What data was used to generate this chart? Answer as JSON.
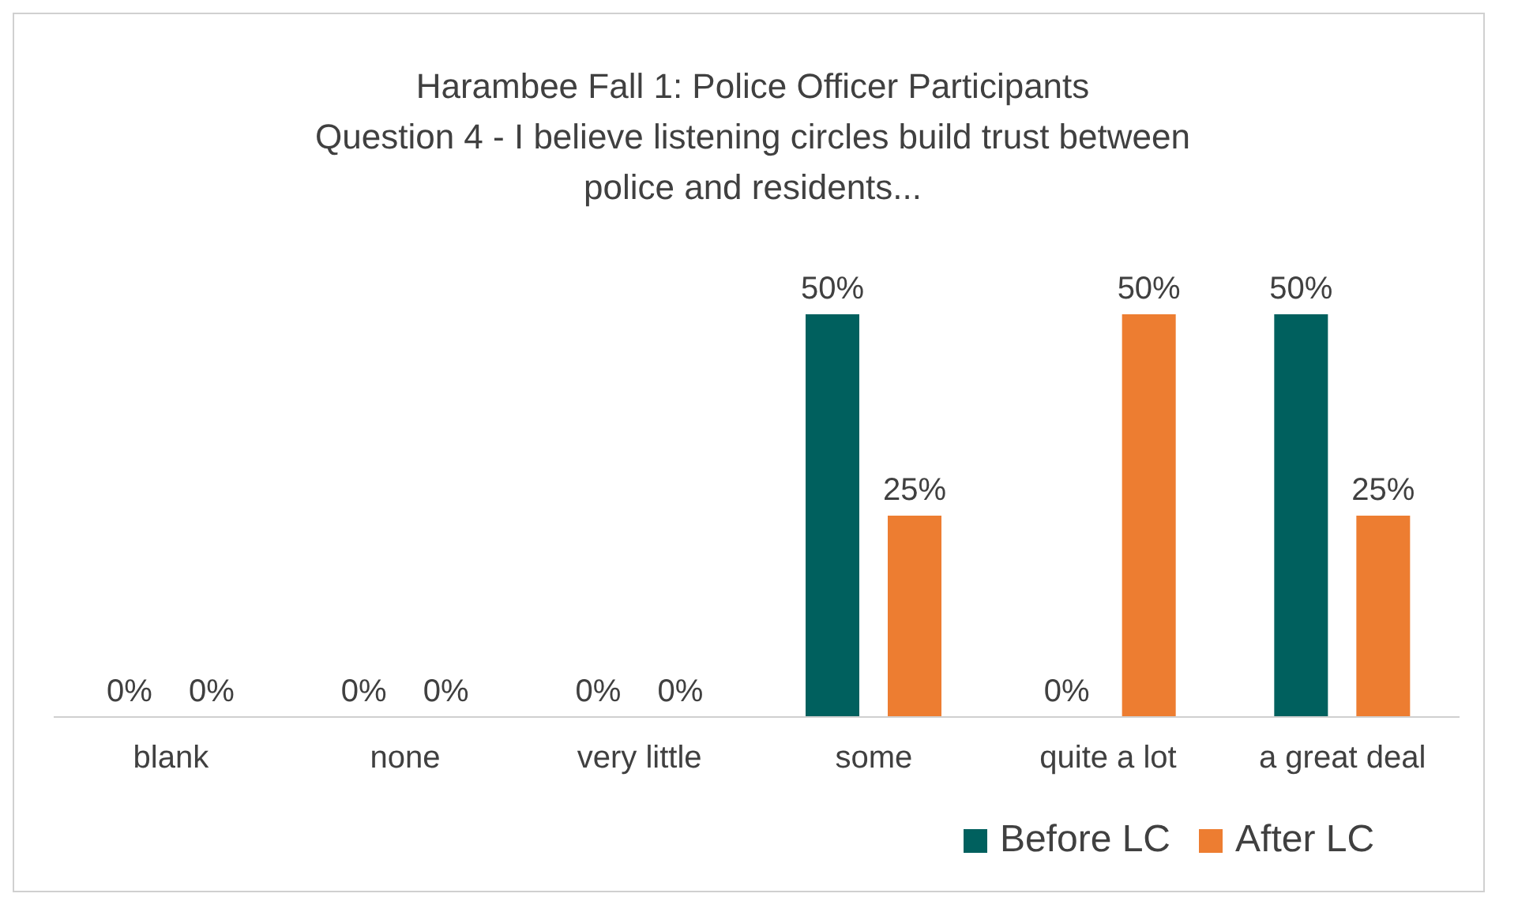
{
  "chart_data": {
    "type": "bar",
    "title": "Harambee Fall 1: Police Officer Participants\nQuestion 4 - I believe listening circles build trust between\npolice and residents...",
    "categories": [
      "blank",
      "none",
      "very little",
      "some",
      "quite a lot",
      "a great deal"
    ],
    "series": [
      {
        "name": "Before LC",
        "color": "#00605e",
        "values": [
          0,
          0,
          0,
          50,
          0,
          50
        ],
        "value_labels": [
          "0%",
          "0%",
          "0%",
          "50%",
          "0%",
          "50%"
        ]
      },
      {
        "name": "After LC",
        "color": "#ed7d31",
        "values": [
          0,
          0,
          0,
          25,
          50,
          25
        ],
        "value_labels": [
          "0%",
          "0%",
          "0%",
          "25%",
          "50%",
          "25%"
        ]
      }
    ],
    "legend": "bottom",
    "grid": false
  }
}
